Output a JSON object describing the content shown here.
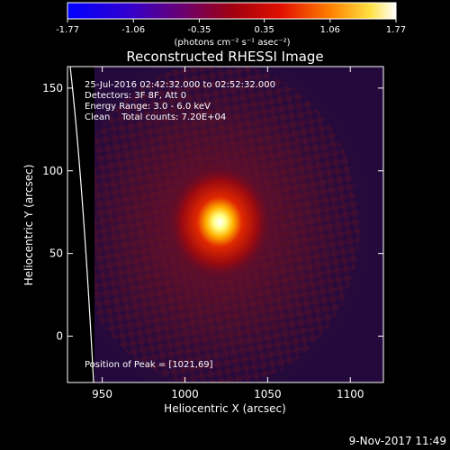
{
  "chart_data": {
    "type": "heatmap",
    "title": "Reconstructed RHESSI Image",
    "xlabel": "Heliocentric X (arcsec)",
    "ylabel": "Heliocentric Y (arcsec)",
    "xlim": [
      929,
      1120
    ],
    "ylim": [
      -28,
      163
    ],
    "x_ticks": [
      950,
      1000,
      1050,
      1100
    ],
    "y_ticks": [
      0,
      50,
      100,
      150
    ],
    "colorbar": {
      "ticks": [
        "-1.77",
        "-1.06",
        "-0.35",
        "0.35",
        "1.06",
        "1.77"
      ],
      "range": [
        -1.77,
        1.77
      ],
      "unit_label": "(photons cm⁻² s⁻¹ asec⁻²)",
      "colormap": "blue-purple-red-yellow-white"
    },
    "annotations": [
      "25-Jul-2016 02:42:32.000 to 02:52:32.000",
      "Detectors: 3F 8F, Att 0",
      "Energy Range: 3.0 - 6.0 keV",
      "Clean    Total counts: 7.20E+04"
    ],
    "peak_label": "Position of Peak = [1021,69]",
    "peak": {
      "x": 1021,
      "y": 69
    },
    "limb_line": "solar limb arc near X ≈ 940 arcsec",
    "grid": false
  },
  "footer": {
    "date": "9-Nov-2017 11:49"
  }
}
